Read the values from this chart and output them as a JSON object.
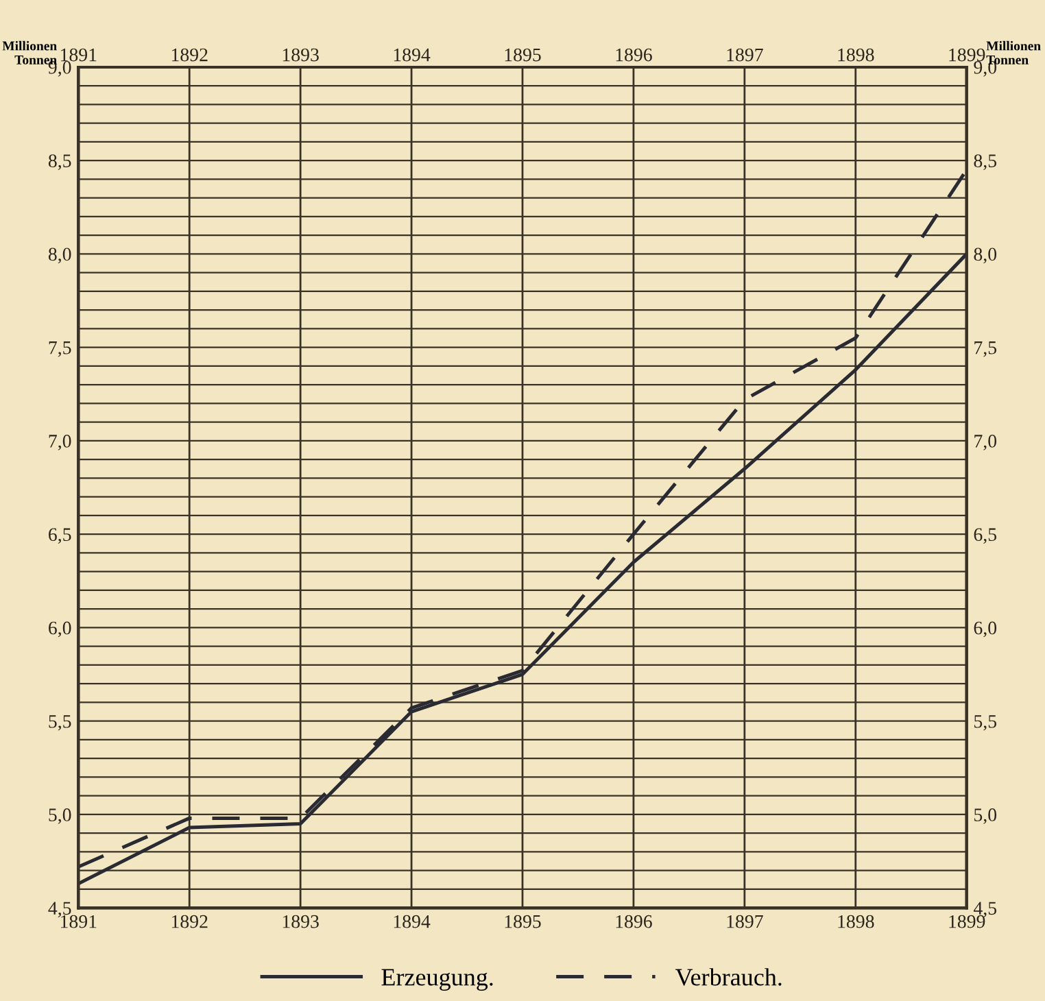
{
  "chart_data": {
    "type": "line",
    "ylabel": "Millionen\nTonnen",
    "y2label": "Millionen\nTonnen",
    "x": [
      1891,
      1892,
      1893,
      1894,
      1895,
      1896,
      1897,
      1898,
      1899
    ],
    "series": [
      {
        "name": "Erzeugung.",
        "color": "#2a2a33",
        "line_style": "solid",
        "values": [
          4.63,
          4.93,
          4.95,
          5.55,
          5.75,
          6.35,
          6.85,
          7.38,
          8.0
        ]
      },
      {
        "name": "Verbrauch.",
        "color": "#2a2a33",
        "line_style": "dashed",
        "values": [
          4.72,
          4.98,
          4.98,
          5.57,
          5.77,
          6.5,
          7.22,
          7.55,
          8.45
        ]
      }
    ],
    "xlim": [
      1891,
      1899
    ],
    "xticks": [
      1891,
      1892,
      1893,
      1894,
      1895,
      1896,
      1897,
      1898,
      1899
    ],
    "x2lim": [
      1891,
      1899
    ],
    "x2ticks": [
      1891,
      1892,
      1893,
      1894,
      1895,
      1896,
      1897,
      1898,
      1899
    ],
    "ylim": [
      4.5,
      9.0
    ],
    "yticks": [
      {
        "value": 4.5,
        "label": "4,5"
      },
      {
        "value": 4.6,
        "label": null
      },
      {
        "value": 4.7,
        "label": null
      },
      {
        "value": 4.8,
        "label": null
      },
      {
        "value": 4.9,
        "label": null
      },
      {
        "value": 5.0,
        "label": "5,0"
      },
      {
        "value": 5.1,
        "label": null
      },
      {
        "value": 5.2,
        "label": null
      },
      {
        "value": 5.3,
        "label": null
      },
      {
        "value": 5.4,
        "label": null
      },
      {
        "value": 5.5,
        "label": "5,5"
      },
      {
        "value": 5.6,
        "label": null
      },
      {
        "value": 5.7,
        "label": null
      },
      {
        "value": 5.8,
        "label": null
      },
      {
        "value": 5.9,
        "label": null
      },
      {
        "value": 6.0,
        "label": "6,0"
      },
      {
        "value": 6.1,
        "label": null
      },
      {
        "value": 6.2,
        "label": null
      },
      {
        "value": 6.3,
        "label": null
      },
      {
        "value": 6.4,
        "label": null
      },
      {
        "value": 6.5,
        "label": "6,5"
      },
      {
        "value": 6.6,
        "label": null
      },
      {
        "value": 6.7,
        "label": null
      },
      {
        "value": 6.8,
        "label": null
      },
      {
        "value": 6.9,
        "label": null
      },
      {
        "value": 7.0,
        "label": "7,0"
      },
      {
        "value": 7.1,
        "label": null
      },
      {
        "value": 7.2,
        "label": null
      },
      {
        "value": 7.3,
        "label": null
      },
      {
        "value": 7.4,
        "label": null
      },
      {
        "value": 7.5,
        "label": "7,5"
      },
      {
        "value": 7.6,
        "label": null
      },
      {
        "value": 7.7,
        "label": null
      },
      {
        "value": 7.8,
        "label": null
      },
      {
        "value": 7.9,
        "label": null
      },
      {
        "value": 8.0,
        "label": "8,0"
      },
      {
        "value": 8.1,
        "label": null
      },
      {
        "value": 8.2,
        "label": null
      },
      {
        "value": 8.3,
        "label": null
      },
      {
        "value": 8.4,
        "label": null
      },
      {
        "value": 8.5,
        "label": "8,5"
      },
      {
        "value": 8.6,
        "label": null
      },
      {
        "value": 8.7,
        "label": null
      },
      {
        "value": 8.8,
        "label": null
      },
      {
        "value": 8.9,
        "label": null
      },
      {
        "value": 9.0,
        "label": "9,0"
      }
    ],
    "y2lim": [
      4.5,
      9.0
    ],
    "y2ticks": [
      {
        "value": 4.5,
        "label": "4,5"
      },
      {
        "value": 5.0,
        "label": "5,0"
      },
      {
        "value": 5.5,
        "label": "5,5"
      },
      {
        "value": 6.0,
        "label": "6,0"
      },
      {
        "value": 6.5,
        "label": "6,5"
      },
      {
        "value": 7.0,
        "label": "7,0"
      },
      {
        "value": 7.5,
        "label": "7,5"
      },
      {
        "value": 8.0,
        "label": "8,0"
      },
      {
        "value": 8.5,
        "label": "8,5"
      },
      {
        "value": 9.0,
        "label": "9,0"
      }
    ],
    "grid": true,
    "legend": "bottom",
    "marker": "none"
  }
}
